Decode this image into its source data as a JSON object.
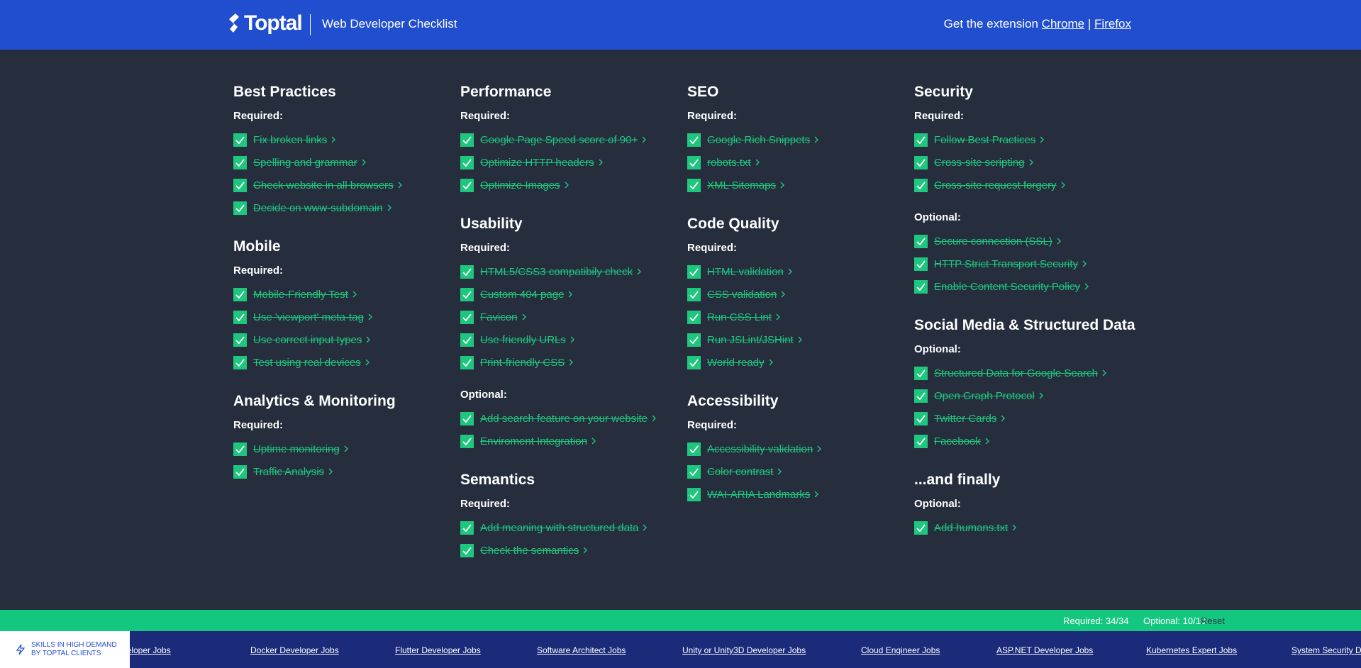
{
  "header": {
    "logo": "Toptal",
    "title": "Web Developer Checklist",
    "extension_text": "Get the extension",
    "links": [
      "Chrome",
      "Firefox"
    ],
    "separator": "|"
  },
  "columns": [
    [
      {
        "title": "Best Practices",
        "groups": [
          {
            "label": "Required:",
            "items": [
              "Fix broken links",
              "Spelling and grammar",
              "Check website in all browsers",
              "Decide on www-subdomain"
            ]
          }
        ]
      },
      {
        "title": "Mobile",
        "groups": [
          {
            "label": "Required:",
            "items": [
              "Mobile-Friendly Test",
              "Use 'viewport' meta-tag",
              "Use correct input types",
              "Test using real devices"
            ]
          }
        ]
      },
      {
        "title": "Analytics & Monitoring",
        "groups": [
          {
            "label": "Required:",
            "items": [
              "Uptime monitoring",
              "Traffic Analysis"
            ]
          }
        ]
      }
    ],
    [
      {
        "title": "Performance",
        "groups": [
          {
            "label": "Required:",
            "items": [
              "Google Page Speed score of 90+",
              "Optimize HTTP headers",
              "Optimize Images"
            ]
          }
        ]
      },
      {
        "title": "Usability",
        "groups": [
          {
            "label": "Required:",
            "items": [
              "HTML5/CSS3 compatibily check",
              "Custom 404 page",
              "Favicon",
              "Use friendly URLs",
              "Print-friendly CSS"
            ]
          },
          {
            "label": "Optional:",
            "items": [
              "Add search feature on your website",
              "Enviroment Integration"
            ]
          }
        ]
      },
      {
        "title": "Semantics",
        "groups": [
          {
            "label": "Required:",
            "items": [
              "Add meaning with structured data",
              "Check the semantics"
            ]
          }
        ]
      }
    ],
    [
      {
        "title": "SEO",
        "groups": [
          {
            "label": "Required:",
            "items": [
              "Google Rich Snippets",
              "robots.txt",
              "XML Sitemaps"
            ]
          }
        ]
      },
      {
        "title": "Code Quality",
        "groups": [
          {
            "label": "Required:",
            "items": [
              "HTML validation",
              "CSS validation",
              "Run CSS Lint",
              "Run JSLint/JSHint",
              "World ready"
            ]
          }
        ]
      },
      {
        "title": "Accessibility",
        "groups": [
          {
            "label": "Required:",
            "items": [
              "Accessibility validation",
              "Color contrast",
              "WAI-ARIA Landmarks"
            ]
          }
        ]
      }
    ],
    [
      {
        "title": "Security",
        "groups": [
          {
            "label": "Required:",
            "items": [
              "Follow Best Practices",
              "Cross-site scripting",
              "Cross-site request forgery"
            ]
          },
          {
            "label": "Optional:",
            "items": [
              "Secure connection (SSL)",
              "HTTP Strict Transport Security",
              "Enable Content Security Policy"
            ]
          }
        ]
      },
      {
        "title": "Social Media & Structured Data",
        "groups": [
          {
            "label": "Optional:",
            "items": [
              "Structured Data for Google Search",
              "Open Graph Protocol",
              "Twitter Cards",
              "Facebook"
            ]
          }
        ]
      },
      {
        "title": "...and finally",
        "groups": [
          {
            "label": "Optional:",
            "items": [
              "Add humans.txt"
            ]
          }
        ]
      }
    ]
  ],
  "status": {
    "required": "Required: 34/34",
    "optional": "Optional: 10/10",
    "reset": "Reset"
  },
  "jobs": {
    "badge": [
      "SKILLS IN HIGH DEMAND",
      "BY TOPTAL CLIENTS"
    ],
    "links": [
      "r Developer Jobs",
      "Docker Developer Jobs",
      "Flutter Developer Jobs",
      "Software Architect Jobs",
      "Unity or Unity3D Developer Jobs",
      "Cloud Engineer Jobs",
      "ASP.NET Developer Jobs",
      "Kubernetes Expert Jobs",
      "System Security De"
    ]
  }
}
